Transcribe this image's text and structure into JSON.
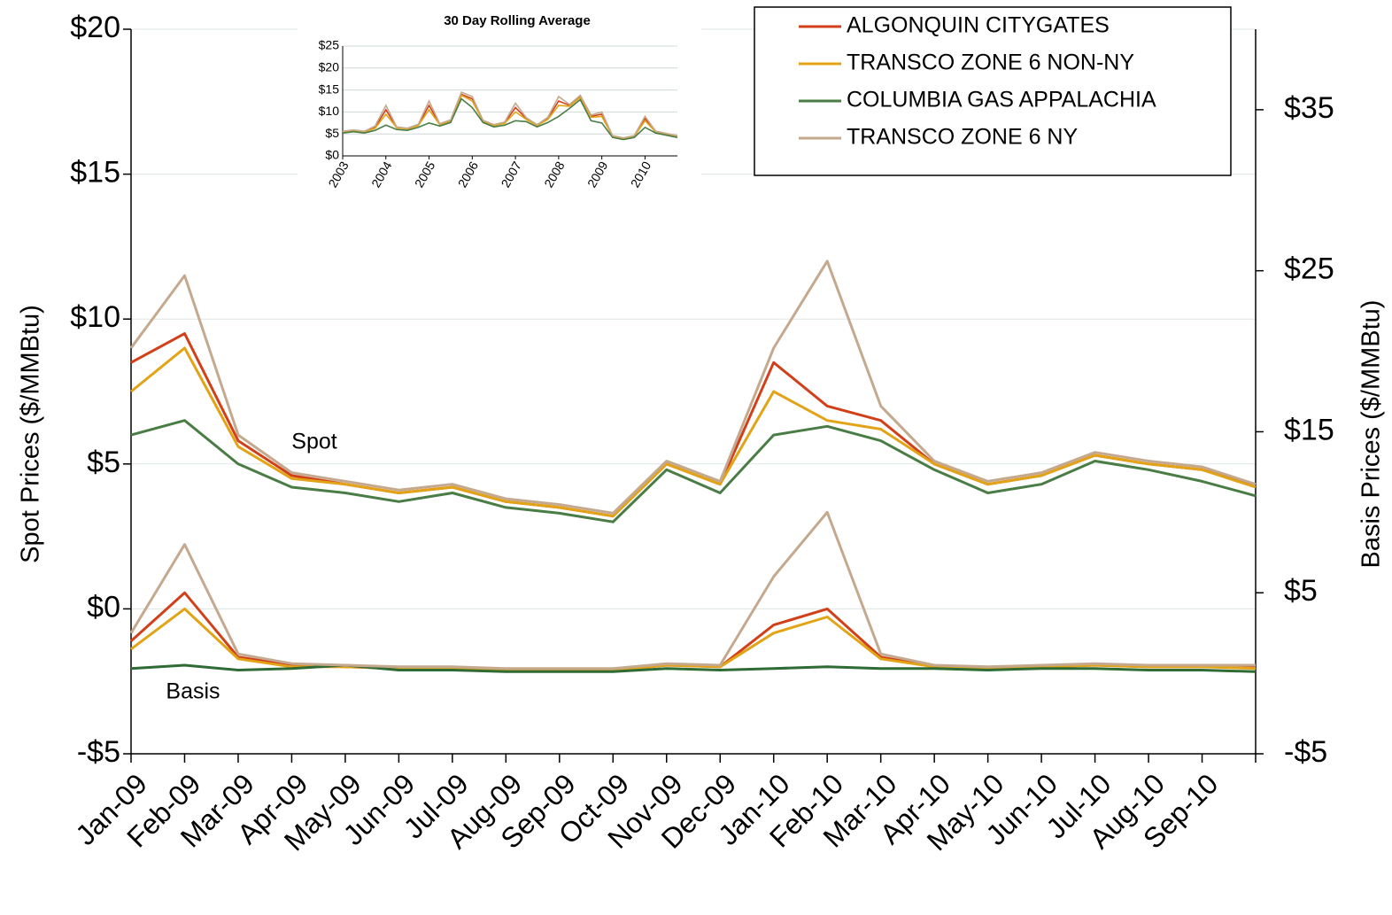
{
  "chart_data": [
    {
      "type": "line",
      "categories": [
        "Jan-09",
        "Feb-09",
        "Mar-09",
        "Apr-09",
        "May-09",
        "Jun-09",
        "Jul-09",
        "Aug-09",
        "Sep-09",
        "Oct-09",
        "Nov-09",
        "Dec-09",
        "Jan-10",
        "Feb-10",
        "Mar-10",
        "Apr-10",
        "May-10",
        "Jun-10",
        "Jul-10",
        "Aug-10",
        "Sep-10",
        null
      ],
      "series": [
        {
          "name": "ALGONQUIN CITYGATES",
          "color": "#d2401a",
          "values": [
            8.5,
            9.5,
            5.8,
            4.6,
            4.3,
            4.0,
            4.2,
            3.7,
            3.5,
            3.2,
            5.0,
            4.3,
            8.5,
            7.0,
            6.5,
            5.0,
            4.3,
            4.6,
            5.3,
            5.0,
            4.8,
            4.3
          ]
        },
        {
          "name": "TRANSCO ZONE 6 NON-NY",
          "color": "#e2a416",
          "values": [
            7.5,
            9.0,
            5.6,
            4.5,
            4.3,
            4.0,
            4.2,
            3.7,
            3.5,
            3.2,
            5.0,
            4.3,
            7.5,
            6.5,
            6.2,
            5.0,
            4.3,
            4.6,
            5.3,
            5.0,
            4.8,
            4.2
          ]
        },
        {
          "name": "COLUMBIA GAS APPALACHIA",
          "color": "#4a7d45",
          "values": [
            6.0,
            6.5,
            5.0,
            4.2,
            4.0,
            3.7,
            4.0,
            3.5,
            3.3,
            3.0,
            4.8,
            4.0,
            6.0,
            6.3,
            5.8,
            4.8,
            4.0,
            4.3,
            5.1,
            4.8,
            4.4,
            3.9
          ]
        },
        {
          "name": "TRANSCO ZONE 6 NY",
          "color": "#c4a98e",
          "values": [
            9.0,
            11.5,
            6.0,
            4.7,
            4.4,
            4.1,
            4.3,
            3.8,
            3.6,
            3.3,
            5.1,
            4.4,
            9.0,
            12.0,
            7.0,
            5.1,
            4.4,
            4.7,
            5.4,
            5.1,
            4.9,
            4.3
          ]
        },
        {
          "color": "#d2401a",
          "axis": "y2",
          "values": [
            2.0,
            5.0,
            1.0,
            0.5,
            0.4,
            0.3,
            0.3,
            0.2,
            0.2,
            0.2,
            0.5,
            0.4,
            3.0,
            4.0,
            1.0,
            0.4,
            0.3,
            0.4,
            0.5,
            0.4,
            0.4,
            0.4
          ]
        },
        {
          "color": "#e2a416",
          "axis": "y2",
          "values": [
            1.5,
            4.0,
            0.9,
            0.4,
            0.4,
            0.3,
            0.3,
            0.2,
            0.2,
            0.2,
            0.5,
            0.4,
            2.5,
            3.5,
            0.9,
            0.4,
            0.3,
            0.4,
            0.5,
            0.4,
            0.4,
            0.3
          ]
        },
        {
          "color": "#2e6b35",
          "axis": "y2",
          "values": [
            0.3,
            0.5,
            0.2,
            0.3,
            0.5,
            0.2,
            0.2,
            0.1,
            0.1,
            0.1,
            0.3,
            0.2,
            0.3,
            0.4,
            0.3,
            0.3,
            0.2,
            0.3,
            0.3,
            0.2,
            0.2,
            0.1
          ]
        },
        {
          "color": "#c4a98e",
          "axis": "y2",
          "values": [
            2.5,
            8.0,
            1.2,
            0.6,
            0.5,
            0.4,
            0.4,
            0.3,
            0.3,
            0.3,
            0.6,
            0.5,
            6.0,
            10.0,
            1.2,
            0.5,
            0.4,
            0.5,
            0.6,
            0.5,
            0.5,
            0.5
          ]
        }
      ],
      "ylim": [
        -5,
        20
      ],
      "yticks": [
        {
          "value": -5,
          "label": "-$5"
        },
        {
          "value": 0,
          "label": "$0"
        },
        {
          "value": 5,
          "label": "$5"
        },
        {
          "value": 10,
          "label": "$10"
        },
        {
          "value": 15,
          "label": "$15"
        },
        {
          "value": 20,
          "label": "$20"
        }
      ],
      "y2lim": [
        -5,
        40
      ],
      "y2ticks": [
        {
          "value": -5,
          "label": "-$5"
        },
        {
          "value": 5,
          "label": "$5"
        },
        {
          "value": 15,
          "label": "$15"
        },
        {
          "value": 25,
          "label": "$25"
        },
        {
          "value": 35,
          "label": "$35"
        }
      ],
      "y_label": "Spot Prices ($/MMBtu)",
      "y2_label": "Basis Prices ($/MMBtu)",
      "annotations": [
        "Spot",
        "Basis"
      ],
      "grid": true,
      "legend": "top-right"
    },
    {
      "type": "line",
      "title": "30 Day Rolling Average",
      "x": [
        2003,
        2003.25,
        2003.5,
        2003.75,
        2004,
        2004.25,
        2004.5,
        2004.75,
        2005,
        2005.25,
        2005.5,
        2005.75,
        2006,
        2006.25,
        2006.5,
        2006.75,
        2007,
        2007.25,
        2007.5,
        2007.75,
        2008,
        2008.25,
        2008.5,
        2008.75,
        2009,
        2009.25,
        2009.5,
        2009.75,
        2010,
        2010.25,
        2010.5,
        2010.75
      ],
      "series": [
        {
          "color": "#d2401a",
          "values": [
            5.5,
            5.8,
            5.5,
            6.5,
            10.5,
            6.5,
            6.2,
            7.0,
            11.5,
            7.2,
            8.0,
            14.0,
            13.0,
            8.0,
            7.0,
            7.5,
            11.0,
            8.5,
            7.0,
            8.5,
            12.5,
            11.5,
            13.5,
            9.0,
            9.5,
            4.5,
            4.0,
            4.5,
            8.5,
            5.5,
            5.0,
            4.5
          ]
        },
        {
          "color": "#e2a416",
          "values": [
            5.4,
            5.7,
            5.4,
            6.3,
            9.5,
            6.4,
            6.1,
            6.9,
            10.5,
            7.1,
            7.9,
            13.8,
            12.5,
            7.9,
            6.9,
            7.4,
            10.0,
            8.3,
            6.9,
            8.3,
            11.5,
            11.3,
            13.3,
            8.8,
            9.0,
            4.4,
            3.9,
            4.4,
            8.0,
            5.4,
            4.9,
            4.4
          ]
        },
        {
          "color": "#4a7d45",
          "values": [
            5.2,
            5.5,
            5.2,
            5.8,
            7.0,
            6.0,
            5.8,
            6.5,
            7.5,
            6.8,
            7.6,
            13.0,
            11.0,
            7.6,
            6.6,
            7.0,
            8.0,
            7.8,
            6.6,
            7.6,
            9.0,
            10.8,
            12.8,
            8.0,
            7.5,
            4.2,
            3.7,
            4.2,
            6.5,
            5.2,
            4.7,
            4.2
          ]
        },
        {
          "color": "#c4a98e",
          "values": [
            5.6,
            5.9,
            5.6,
            6.8,
            11.5,
            6.6,
            6.3,
            7.2,
            12.5,
            7.3,
            8.2,
            14.5,
            13.5,
            8.1,
            7.1,
            7.7,
            12.0,
            8.7,
            7.1,
            8.8,
            13.5,
            11.7,
            13.8,
            9.3,
            10.0,
            4.6,
            4.1,
            4.6,
            9.0,
            5.6,
            5.1,
            4.6
          ]
        }
      ],
      "xlim": [
        2003,
        2010.75
      ],
      "xticks": [
        2003,
        2004,
        2005,
        2006,
        2007,
        2008,
        2009,
        2010
      ],
      "ylim": [
        0,
        25
      ],
      "yticks": [
        {
          "value": 0,
          "label": "$0"
        },
        {
          "value": 5,
          "label": "$5"
        },
        {
          "value": 10,
          "label": "$10"
        },
        {
          "value": 15,
          "label": "$15"
        },
        {
          "value": 20,
          "label": "$20"
        },
        {
          "value": 25,
          "label": "$25"
        }
      ],
      "grid": true
    }
  ]
}
